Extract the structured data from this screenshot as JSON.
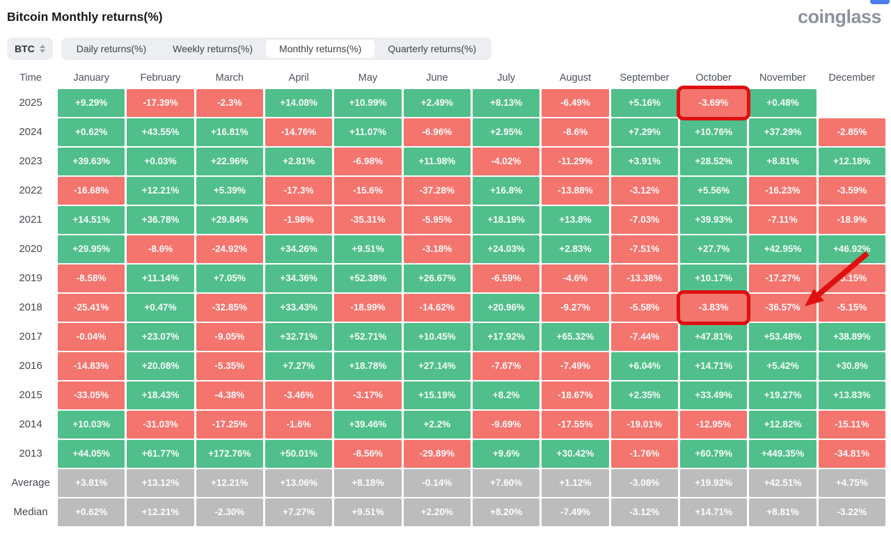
{
  "header": {
    "title": "Bitcoin Monthly returns(%)",
    "logo": "coinglass"
  },
  "toolbar": {
    "symbol": "BTC",
    "tabs": [
      {
        "label": "Daily returns(%)",
        "active": false
      },
      {
        "label": "Weekly returns(%)",
        "active": false
      },
      {
        "label": "Monthly returns(%)",
        "active": true
      },
      {
        "label": "Quarterly returns(%)",
        "active": false
      }
    ]
  },
  "colors": {
    "positive": "#50bf8b",
    "negative": "#f4746e",
    "summary": "#bcbcbd",
    "annotation": "#de1010"
  },
  "chart_data": {
    "type": "table",
    "title": "Bitcoin Monthly returns(%)",
    "time_header": "Time",
    "months": [
      "January",
      "February",
      "March",
      "April",
      "May",
      "June",
      "July",
      "August",
      "September",
      "October",
      "November",
      "December"
    ],
    "rows": [
      {
        "label": "2025",
        "kind": "year",
        "values": [
          "+9.29%",
          "-17.39%",
          "-2.3%",
          "+14.08%",
          "+10.99%",
          "+2.49%",
          "+8.13%",
          "-6.49%",
          "+5.16%",
          "-3.69%",
          "+0.48%",
          null
        ]
      },
      {
        "label": "2024",
        "kind": "year",
        "values": [
          "+0.62%",
          "+43.55%",
          "+16.81%",
          "-14.76%",
          "+11.07%",
          "-6.96%",
          "+2.95%",
          "-8.6%",
          "+7.29%",
          "+10.76%",
          "+37.29%",
          "-2.85%"
        ]
      },
      {
        "label": "2023",
        "kind": "year",
        "values": [
          "+39.63%",
          "+0.03%",
          "+22.96%",
          "+2.81%",
          "-6.98%",
          "+11.98%",
          "-4.02%",
          "-11.29%",
          "+3.91%",
          "+28.52%",
          "+8.81%",
          "+12.18%"
        ]
      },
      {
        "label": "2022",
        "kind": "year",
        "values": [
          "-16.68%",
          "+12.21%",
          "+5.39%",
          "-17.3%",
          "-15.6%",
          "-37.28%",
          "+16.8%",
          "-13.88%",
          "-3.12%",
          "+5.56%",
          "-16.23%",
          "-3.59%"
        ]
      },
      {
        "label": "2021",
        "kind": "year",
        "values": [
          "+14.51%",
          "+36.78%",
          "+29.84%",
          "-1.98%",
          "-35.31%",
          "-5.95%",
          "+18.19%",
          "+13.8%",
          "-7.03%",
          "+39.93%",
          "-7.11%",
          "-18.9%"
        ]
      },
      {
        "label": "2020",
        "kind": "year",
        "values": [
          "+29.95%",
          "-8.6%",
          "-24.92%",
          "+34.26%",
          "+9.51%",
          "-3.18%",
          "+24.03%",
          "+2.83%",
          "-7.51%",
          "+27.7%",
          "+42.95%",
          "+46.92%"
        ]
      },
      {
        "label": "2019",
        "kind": "year",
        "values": [
          "-8.58%",
          "+11.14%",
          "+7.05%",
          "+34.36%",
          "+52.38%",
          "+26.67%",
          "-6.59%",
          "-4.6%",
          "-13.38%",
          "+10.17%",
          "-17.27%",
          "-5.15%"
        ]
      },
      {
        "label": "2018",
        "kind": "year",
        "values": [
          "-25.41%",
          "+0.47%",
          "-32.85%",
          "+33.43%",
          "-18.99%",
          "-14.62%",
          "+20.96%",
          "-9.27%",
          "-5.58%",
          "-3.83%",
          "-36.57%",
          "-5.15%"
        ]
      },
      {
        "label": "2017",
        "kind": "year",
        "values": [
          "-0.04%",
          "+23.07%",
          "-9.05%",
          "+32.71%",
          "+52.71%",
          "+10.45%",
          "+17.92%",
          "+65.32%",
          "-7.44%",
          "+47.81%",
          "+53.48%",
          "+38.89%"
        ]
      },
      {
        "label": "2016",
        "kind": "year",
        "values": [
          "-14.83%",
          "+20.08%",
          "-5.35%",
          "+7.27%",
          "+18.78%",
          "+27.14%",
          "-7.67%",
          "-7.49%",
          "+6.04%",
          "+14.71%",
          "+5.42%",
          "+30.8%"
        ]
      },
      {
        "label": "2015",
        "kind": "year",
        "values": [
          "-33.05%",
          "+18.43%",
          "-4.38%",
          "-3.46%",
          "-3.17%",
          "+15.19%",
          "+8.2%",
          "-18.67%",
          "+2.35%",
          "+33.49%",
          "+19.27%",
          "+13.83%"
        ]
      },
      {
        "label": "2014",
        "kind": "year",
        "values": [
          "+10.03%",
          "-31.03%",
          "-17.25%",
          "-1.6%",
          "+39.46%",
          "+2.2%",
          "-9.69%",
          "-17.55%",
          "-19.01%",
          "-12.95%",
          "+12.82%",
          "-15.11%"
        ]
      },
      {
        "label": "2013",
        "kind": "year",
        "values": [
          "+44.05%",
          "+61.77%",
          "+172.76%",
          "+50.01%",
          "-8.56%",
          "-29.89%",
          "+9.6%",
          "+30.42%",
          "-1.76%",
          "+60.79%",
          "+449.35%",
          "-34.81%"
        ]
      },
      {
        "label": "Average",
        "kind": "summary",
        "values": [
          "+3.81%",
          "+13.12%",
          "+12.21%",
          "+13.06%",
          "+8.18%",
          "-0.14%",
          "+7.60%",
          "+1.12%",
          "-3.08%",
          "+19.92%",
          "+42.51%",
          "+4.75%"
        ]
      },
      {
        "label": "Median",
        "kind": "summary",
        "values": [
          "+0.62%",
          "+12.21%",
          "-2.30%",
          "+7.27%",
          "+9.51%",
          "+2.20%",
          "+8.20%",
          "-7.49%",
          "-3.12%",
          "+14.71%",
          "+8.81%",
          "-3.22%"
        ]
      }
    ],
    "annotations": {
      "highlighted_cells": [
        {
          "row": "2025",
          "month": "October",
          "value": "-3.69%"
        },
        {
          "row": "2018",
          "month": "October",
          "value": "-3.83%"
        }
      ],
      "arrow_target": {
        "row": "2018",
        "month": "November",
        "value": "-36.57%"
      }
    }
  }
}
